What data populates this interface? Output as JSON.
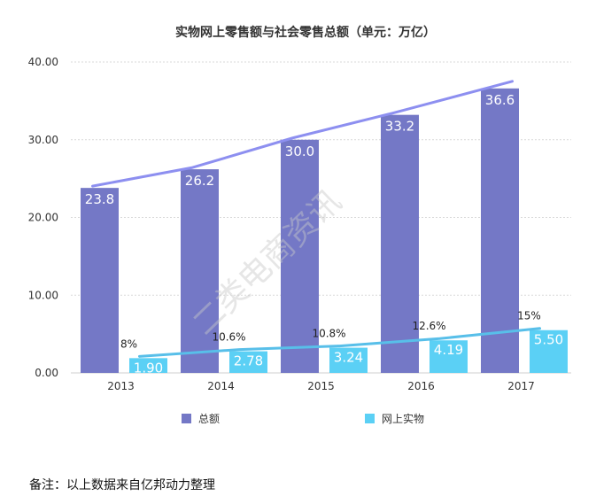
{
  "chart_data": {
    "type": "bar",
    "title": "实物网上零售额与社会零售总额（单元：万亿）",
    "categories": [
      "2013",
      "2014",
      "2015",
      "2016",
      "2017"
    ],
    "ylim": [
      0,
      40
    ],
    "yticks": [
      0,
      10,
      20,
      30,
      40
    ],
    "ytick_labels": [
      "0.00",
      "10.00",
      "20.00",
      "30.00",
      "40.00"
    ],
    "grid": true,
    "legend_position": "bottom",
    "series": [
      {
        "name": "总额",
        "values": [
          23.8,
          26.2,
          30.0,
          33.2,
          36.6
        ],
        "labels": [
          "23.8",
          "26.2",
          "30.0",
          "33.2",
          "36.6"
        ],
        "color": "#7478c6"
      },
      {
        "name": "网上实物",
        "values": [
          1.9,
          2.78,
          3.24,
          4.19,
          5.5
        ],
        "labels": [
          "1.90",
          "2.78",
          "3.24",
          "4.19",
          "5.50"
        ],
        "percent_labels": [
          "8%",
          "10.6%",
          "10.8%",
          "12.6%",
          "15%"
        ],
        "color": "#5bd0f5"
      }
    ],
    "trend_colors": {
      "total": "#8d8ff0",
      "online": "#58bfe9"
    }
  },
  "watermark": "二类电商资讯",
  "note": "备注：以上数据来自亿邦动力整理"
}
